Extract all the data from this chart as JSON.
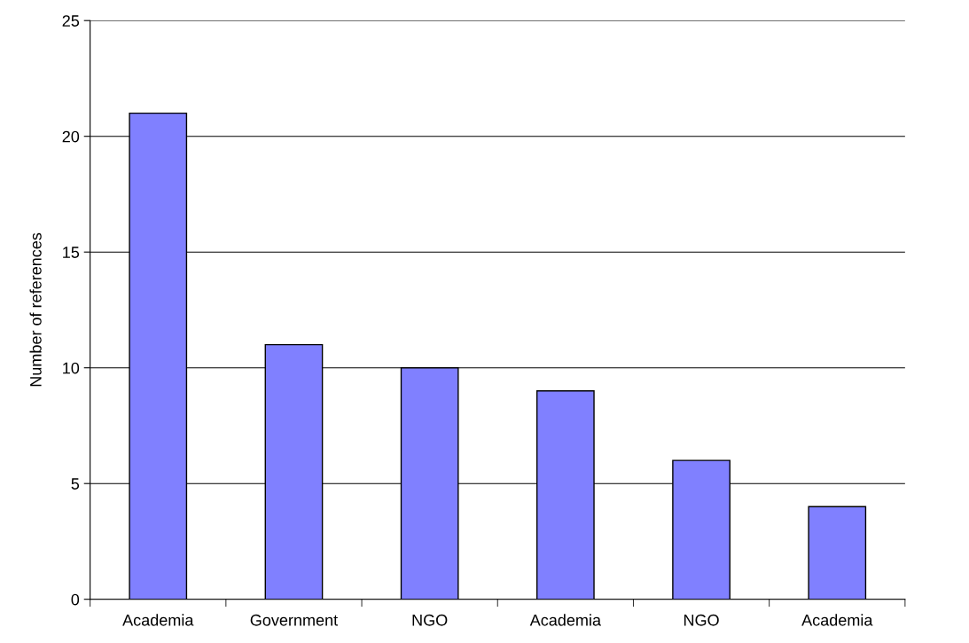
{
  "chart_data": {
    "type": "bar",
    "ylabel": "Number of references",
    "categories": [
      "Academia",
      "Government",
      "NGO",
      "Academia",
      "NGO",
      "Academia"
    ],
    "values": [
      21,
      11,
      10,
      9,
      6,
      4
    ],
    "color": "#8080ff",
    "ylim": [
      0,
      25
    ],
    "yticks": [
      0,
      5,
      10,
      15,
      20,
      25
    ],
    "grid": "y",
    "legend": false
  }
}
